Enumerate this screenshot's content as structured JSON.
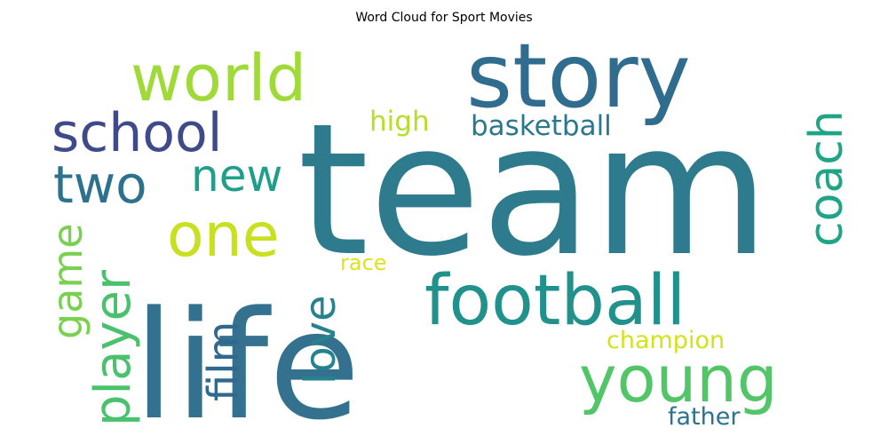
{
  "chart_data": {
    "type": "wordcloud",
    "title": "Word Cloud for Sport Movies",
    "words": [
      {
        "text": "team",
        "weight": 100,
        "color": "#2f7b8e"
      },
      {
        "text": "life",
        "weight": 82,
        "color": "#33718e"
      },
      {
        "text": "story",
        "weight": 58,
        "color": "#306c8e"
      },
      {
        "text": "football",
        "weight": 46,
        "color": "#21918c"
      },
      {
        "text": "young",
        "weight": 41,
        "color": "#52c569"
      },
      {
        "text": "world",
        "weight": 41,
        "color": "#a0da39"
      },
      {
        "text": "one",
        "weight": 40,
        "color": "#c8e020"
      },
      {
        "text": "school",
        "weight": 36,
        "color": "#3e4a89"
      },
      {
        "text": "two",
        "weight": 35,
        "color": "#2c728e"
      },
      {
        "text": "player",
        "weight": 34,
        "color": "#4ac16d"
      },
      {
        "text": "coach",
        "weight": 32,
        "color": "#20a486"
      },
      {
        "text": "new",
        "weight": 30,
        "color": "#1f9e89"
      },
      {
        "text": "film",
        "weight": 28,
        "color": "#31688e"
      },
      {
        "text": "love",
        "weight": 28,
        "color": "#26828e"
      },
      {
        "text": "game",
        "weight": 27,
        "color": "#7ad151"
      },
      {
        "text": "basketball",
        "weight": 18,
        "color": "#2a788e"
      },
      {
        "text": "high",
        "weight": 18,
        "color": "#b5de2b"
      },
      {
        "text": "champion",
        "weight": 16,
        "color": "#d2e21b"
      },
      {
        "text": "father",
        "weight": 16,
        "color": "#2c728e"
      },
      {
        "text": "race",
        "weight": 14,
        "color": "#dde318"
      }
    ]
  }
}
